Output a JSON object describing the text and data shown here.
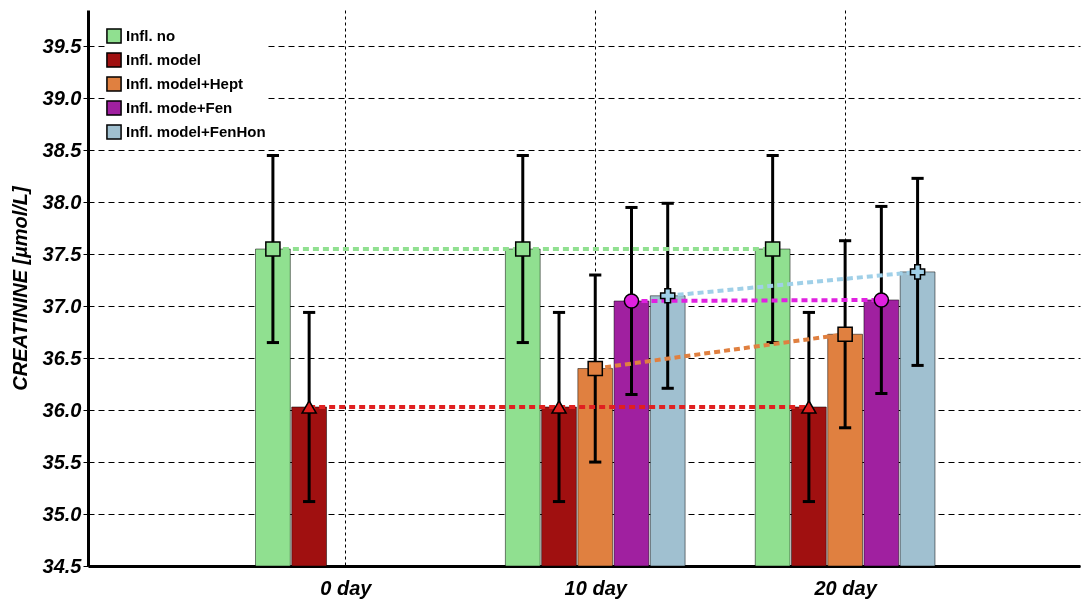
{
  "chart_data": {
    "type": "bar",
    "ylabel": "CREATININE [µmol/L]",
    "categories": [
      "0 day",
      "10 day",
      "20 day"
    ],
    "ylim": [
      34.5,
      39.85
    ],
    "yticks": [
      34.5,
      {
        "value": 35,
        "label": "35.0"
      },
      35.5,
      {
        "value": 36,
        "label": "36.0"
      },
      36.5,
      {
        "value": 37,
        "label": "37.0"
      },
      37.5,
      {
        "value": 38,
        "label": "38.0"
      },
      38.5,
      {
        "value": 39,
        "label": "39.0"
      },
      39.5
    ],
    "grid": true,
    "legend": "top left",
    "line_style": "dashed",
    "series": [
      {
        "name": "Infl. no",
        "color": "#90e090",
        "marker": "square",
        "values": [
          37.55,
          37.55,
          37.55
        ],
        "errors": [
          0.9,
          0.9,
          0.9
        ]
      },
      {
        "name": "Infl. model",
        "color": "#a01010",
        "marker": "triangle",
        "values": [
          36.03,
          36.03,
          36.03
        ],
        "errors": [
          0.91,
          0.91,
          0.91
        ]
      },
      {
        "name": "Infl. model+Hept",
        "color": "#e08040",
        "marker": "square",
        "values": [
          null,
          36.4,
          36.73
        ],
        "errors": [
          null,
          0.9,
          0.9
        ]
      },
      {
        "name": "Infl. mode+Fen",
        "color": "#a020a0",
        "marker": "circle",
        "values": [
          null,
          37.05,
          37.06
        ],
        "errors": [
          null,
          0.9,
          0.9
        ]
      },
      {
        "name": "Infl. model+FenHon",
        "color": "#a0c0d0",
        "marker": "cross",
        "values": [
          null,
          37.1,
          37.33
        ],
        "errors": [
          null,
          0.89,
          0.9
        ]
      },
      {
        "type": "line",
        "color": "#90e090",
        "marker": "square",
        "values": [
          37.55,
          37.55,
          37.55
        ]
      },
      {
        "type": "line",
        "color": "#e02020",
        "marker": "triangle",
        "values": [
          36.03,
          36.03,
          36.03
        ]
      },
      {
        "type": "line",
        "color": "#e08040",
        "marker": "square",
        "values": [
          null,
          36.4,
          36.73
        ]
      },
      {
        "type": "line",
        "color": "#e020e0",
        "marker": "circle",
        "values": [
          null,
          37.05,
          37.06
        ]
      },
      {
        "type": "line",
        "color": "#a0d0e8",
        "marker": "cross",
        "values": [
          null,
          37.1,
          37.33
        ]
      }
    ]
  }
}
